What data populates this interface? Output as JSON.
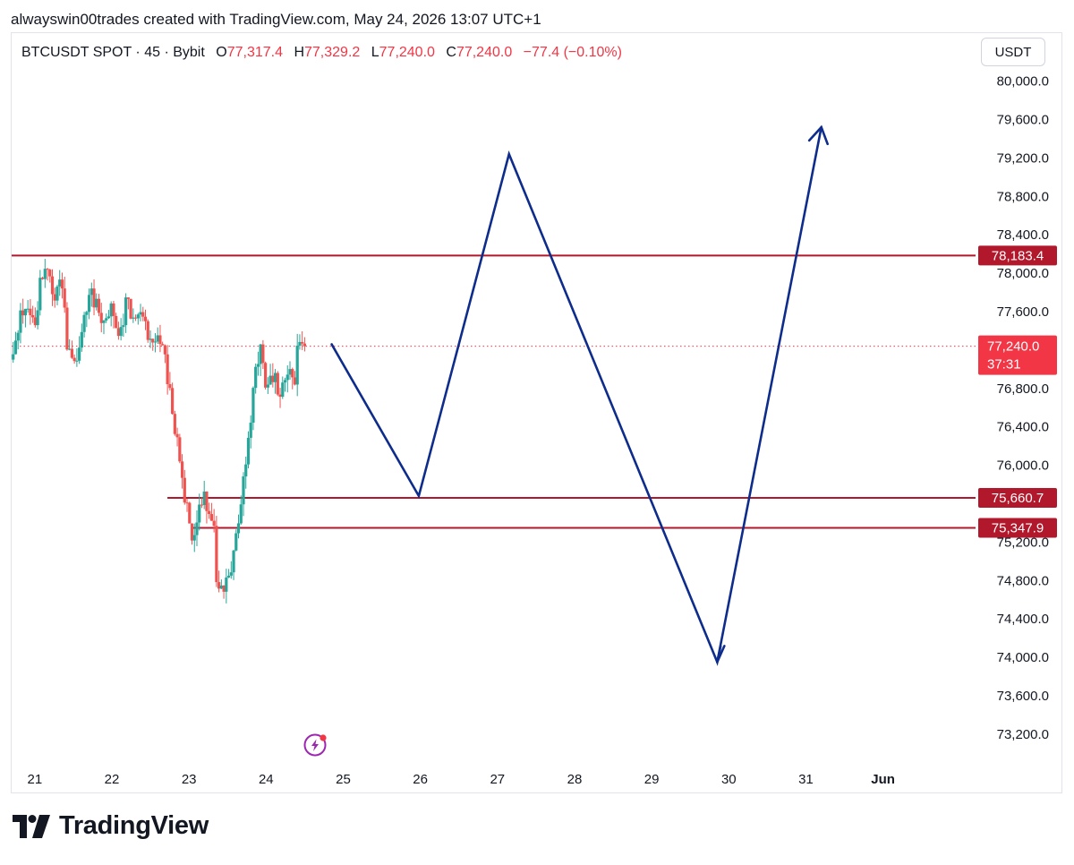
{
  "header": {
    "credit": "alwayswin00trades created with TradingView.com, May 24, 2026 13:07 UTC+1"
  },
  "legend": {
    "symbol": "BTCUSDT SPOT · 45 · Bybit",
    "open_label": "O",
    "open": "77,317.4",
    "high_label": "H",
    "high": "77,329.2",
    "low_label": "L",
    "low": "77,240.0",
    "close_label": "C",
    "close": "77,240.0",
    "change": "−77.4 (−0.10%)"
  },
  "currency_button": "USDT",
  "branding": {
    "logo_text": "TradingView"
  },
  "colors": {
    "up": "#26a69a",
    "down": "#ef5350",
    "level": "#b2182b",
    "path": "#0d2c8c",
    "price_badge": "#f23645",
    "axis_text": "#131722"
  },
  "chart_data": {
    "type": "candlestick",
    "xlabel": "",
    "ylabel": "",
    "ylim": [
      72900,
      80500
    ],
    "xlim": [
      20.7,
      33.2
    ],
    "y_ticks": [
      "80,000.0",
      "79,600.0",
      "79,200.0",
      "78,800.0",
      "78,400.0",
      "78,000.0",
      "77,600.0",
      "76,800.0",
      "76,400.0",
      "76,000.0",
      "75,200.0",
      "74,800.0",
      "74,400.0",
      "74,000.0",
      "73,600.0",
      "73,200.0"
    ],
    "y_tick_values": [
      80000,
      79600,
      79200,
      78800,
      78400,
      78000,
      77600,
      76800,
      76400,
      76000,
      75200,
      74800,
      74400,
      74000,
      73600,
      73200
    ],
    "x_ticks": [
      {
        "label": "21",
        "day": 21
      },
      {
        "label": "22",
        "day": 22
      },
      {
        "label": "23",
        "day": 23
      },
      {
        "label": "24",
        "day": 24
      },
      {
        "label": "25",
        "day": 25
      },
      {
        "label": "26",
        "day": 26
      },
      {
        "label": "27",
        "day": 27
      },
      {
        "label": "28",
        "day": 28
      },
      {
        "label": "29",
        "day": 29
      },
      {
        "label": "30",
        "day": 30
      },
      {
        "label": "31",
        "day": 31
      },
      {
        "label": "Jun",
        "day": 32
      }
    ],
    "price_anchors": [
      [
        20.72,
        77100
      ],
      [
        20.8,
        77500
      ],
      [
        20.9,
        77650
      ],
      [
        21.0,
        77400
      ],
      [
        21.07,
        77900
      ],
      [
        21.15,
        78050
      ],
      [
        21.25,
        77750
      ],
      [
        21.35,
        77900
      ],
      [
        21.42,
        77250
      ],
      [
        21.52,
        77000
      ],
      [
        21.62,
        77500
      ],
      [
        21.72,
        77800
      ],
      [
        21.85,
        77550
      ],
      [
        22.0,
        77650
      ],
      [
        22.1,
        77350
      ],
      [
        22.2,
        77750
      ],
      [
        22.3,
        77450
      ],
      [
        22.4,
        77650
      ],
      [
        22.5,
        77250
      ],
      [
        22.6,
        77350
      ],
      [
        22.7,
        77050
      ],
      [
        22.8,
        76500
      ],
      [
        22.88,
        76050
      ],
      [
        22.95,
        75650
      ],
      [
        23.0,
        75400
      ],
      [
        23.05,
        75250
      ],
      [
        23.12,
        75500
      ],
      [
        23.2,
        75650
      ],
      [
        23.28,
        75400
      ],
      [
        23.33,
        75450
      ],
      [
        23.36,
        74700
      ],
      [
        23.45,
        74750
      ],
      [
        23.55,
        74900
      ],
      [
        23.65,
        75450
      ],
      [
        23.7,
        75900
      ],
      [
        23.78,
        76300
      ],
      [
        23.85,
        76900
      ],
      [
        23.92,
        77250
      ],
      [
        24.0,
        76800
      ],
      [
        24.1,
        76900
      ],
      [
        24.2,
        76750
      ],
      [
        24.3,
        77000
      ],
      [
        24.38,
        76900
      ],
      [
        24.42,
        77350
      ],
      [
        24.48,
        77240
      ],
      [
        24.5,
        77240
      ]
    ],
    "seed": 4242,
    "candle_count": 120,
    "last_price": 77240.0,
    "levels": [
      {
        "price": 78183.4,
        "label": "78,183.4",
        "from_day": 20.7
      },
      {
        "price": 75660.7,
        "label": "75,660.7",
        "from_day": 22.72
      },
      {
        "price": 75347.9,
        "label": "75,347.9",
        "from_day": 23.05
      }
    ],
    "badge": {
      "price": 77240.0,
      "label": "77,240.0",
      "countdown": "37:31"
    },
    "projection_path": [
      [
        24.85,
        77260
      ],
      [
        25.98,
        75680
      ],
      [
        27.15,
        79240
      ],
      [
        29.85,
        73950
      ],
      [
        31.2,
        79520
      ]
    ]
  }
}
